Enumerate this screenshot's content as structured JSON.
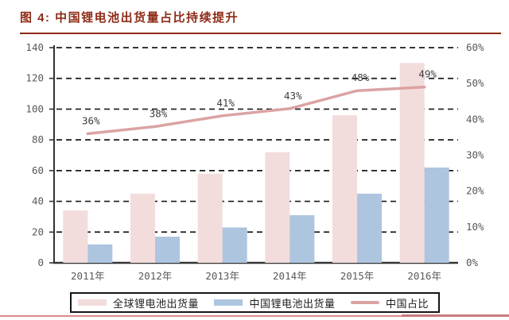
{
  "figure": {
    "title": "图 4: 中国锂电池出货量占比持续提升"
  },
  "chart_data": {
    "type": "bar",
    "subtype": "grouped bars with secondary-axis line",
    "categories": [
      "2011年",
      "2012年",
      "2013年",
      "2014年",
      "2015年",
      "2016年"
    ],
    "series": [
      {
        "name": "全球锂电池出货量",
        "type": "bar",
        "axis": "left",
        "color": "#f3dcdc",
        "values": [
          34,
          45,
          58,
          72,
          96,
          130
        ]
      },
      {
        "name": "中国锂电池出货量",
        "type": "bar",
        "axis": "left",
        "color": "#aec5e0",
        "values": [
          12,
          17,
          23,
          31,
          45,
          62
        ]
      },
      {
        "name": "中国占比",
        "type": "line",
        "axis": "right",
        "color": "#dba3a3",
        "values": [
          36,
          38,
          41,
          43,
          48,
          49
        ],
        "point_labels": [
          "36%",
          "38%",
          "41%",
          "43%",
          "48%",
          "49%"
        ]
      }
    ],
    "left_axis": {
      "min": 0,
      "max": 140,
      "step": 20,
      "tick_labels": [
        "0",
        "20",
        "40",
        "60",
        "80",
        "100",
        "120",
        "140"
      ]
    },
    "right_axis": {
      "min": 0,
      "max": 60,
      "step": 10,
      "tick_labels": [
        "0%",
        "10%",
        "20%",
        "30%",
        "40%",
        "50%",
        "60%"
      ]
    },
    "grid": {
      "horizontal": true,
      "style": "dashed",
      "color": "#1a1a1a"
    },
    "legend_position": "bottom"
  },
  "colors": {
    "title": "#8e2b17",
    "title_rule": "#8e2b17",
    "axis_text": "#595959",
    "data_label": "#3d3d3d",
    "axis_line": "#333333",
    "bottom_rule": "#e08b8b",
    "bottom_rule_dark": "#c97a7a"
  }
}
